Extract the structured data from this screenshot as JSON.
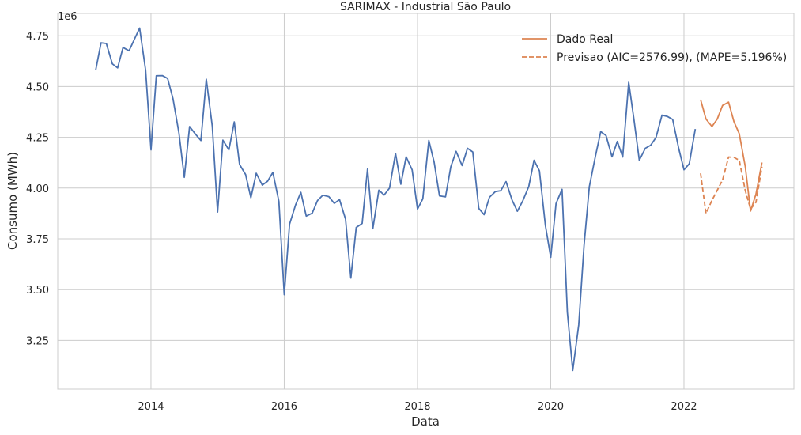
{
  "chart_data": {
    "type": "line",
    "title": "SARIMAX - Industrial São Paulo",
    "xlabel": "Data",
    "ylabel": "Consumo (MWh)",
    "y_offset_label": "1e6",
    "xlim": [
      2012.6,
      2023.65
    ],
    "ylim": [
      3010000,
      4860000
    ],
    "x_ticks": [
      2014,
      2016,
      2018,
      2020,
      2022
    ],
    "x_tick_labels": [
      "2014",
      "2016",
      "2018",
      "2020",
      "2022"
    ],
    "y_ticks": [
      3.25,
      3.5,
      3.75,
      4.0,
      4.25,
      4.5,
      4.75
    ],
    "y_tick_labels": [
      "3.25",
      "3.50",
      "3.75",
      "4.00",
      "4.25",
      "4.50",
      "4.75"
    ],
    "grid": true,
    "legend_position": "top-right",
    "colors": {
      "history": "#4c72b0",
      "real": "#dd8452",
      "forecast": "#dd8452"
    },
    "series": [
      {
        "key": "history",
        "color": "#4c72b0",
        "dash": "solid",
        "x": [
          2013.17,
          2013.25,
          2013.33,
          2013.42,
          2013.5,
          2013.58,
          2013.67,
          2013.75,
          2013.83,
          2013.92,
          2014.0,
          2014.08,
          2014.17,
          2014.25,
          2014.33,
          2014.42,
          2014.5,
          2014.58,
          2014.67,
          2014.75,
          2014.83,
          2014.92,
          2015.0,
          2015.08,
          2015.17,
          2015.25,
          2015.33,
          2015.42,
          2015.5,
          2015.58,
          2015.67,
          2015.75,
          2015.83,
          2015.92,
          2016.0,
          2016.08,
          2016.17,
          2016.25,
          2016.33,
          2016.42,
          2016.5,
          2016.58,
          2016.67,
          2016.75,
          2016.83,
          2016.92,
          2017.0,
          2017.08,
          2017.17,
          2017.25,
          2017.33,
          2017.42,
          2017.5,
          2017.58,
          2017.67,
          2017.75,
          2017.83,
          2017.92,
          2018.0,
          2018.08,
          2018.17,
          2018.25,
          2018.33,
          2018.42,
          2018.5,
          2018.58,
          2018.67,
          2018.75,
          2018.83,
          2018.92,
          2019.0,
          2019.08,
          2019.17,
          2019.25,
          2019.33,
          2019.42,
          2019.5,
          2019.58,
          2019.67,
          2019.75,
          2019.83,
          2019.92,
          2020.0,
          2020.08,
          2020.17,
          2020.25,
          2020.33,
          2020.42,
          2020.5,
          2020.58,
          2020.67,
          2020.75,
          2020.83,
          2020.92,
          2021.0,
          2021.08,
          2021.17,
          2021.25,
          2021.33,
          2021.42,
          2021.5,
          2021.58,
          2021.67,
          2021.75,
          2021.83,
          2021.92,
          2022.0,
          2022.08,
          2022.17
        ],
        "y": [
          4580000,
          4715000,
          4712000,
          4612000,
          4592000,
          4692000,
          4676000,
          4732000,
          4788000,
          4580000,
          4188000,
          4553000,
          4554000,
          4540000,
          4440000,
          4272000,
          4053000,
          4303000,
          4265000,
          4234000,
          4536000,
          4304000,
          3882000,
          4236000,
          4188000,
          4326000,
          4116000,
          4067000,
          3953000,
          4073000,
          4015000,
          4034000,
          4077000,
          3935000,
          3475000,
          3822000,
          3917000,
          3979000,
          3862000,
          3876000,
          3939000,
          3965000,
          3958000,
          3925000,
          3943000,
          3847000,
          3557000,
          3806000,
          3826000,
          4094000,
          3800000,
          3990000,
          3966000,
          4000000,
          4171000,
          4019000,
          4154000,
          4090000,
          3897000,
          3947000,
          4235000,
          4128000,
          3962000,
          3957000,
          4105000,
          4181000,
          4111000,
          4196000,
          4178000,
          3900000,
          3869000,
          3955000,
          3983000,
          3987000,
          4032000,
          3941000,
          3886000,
          3937000,
          4008000,
          4137000,
          4085000,
          3817000,
          3659000,
          3924000,
          3994000,
          3389000,
          3102000,
          3327000,
          3717000,
          4007000,
          4155000,
          4278000,
          4259000,
          4154000,
          4230000,
          4153000,
          4521000,
          4336000,
          4137000,
          4196000,
          4211000,
          4249000,
          4359000,
          4353000,
          4338000,
          4198000,
          4090000,
          4120000,
          4291000
        ]
      },
      {
        "key": "real",
        "name": "Dado Real",
        "color": "#dd8452",
        "dash": "solid",
        "x": [
          2022.25,
          2022.33,
          2022.42,
          2022.5,
          2022.58,
          2022.67,
          2022.75,
          2022.83,
          2022.92,
          2023.0,
          2023.08,
          2023.17
        ],
        "y": [
          4436000,
          4340000,
          4303000,
          4340000,
          4407000,
          4423000,
          4327000,
          4268000,
          4106000,
          3887000,
          3970000,
          4126000
        ]
      },
      {
        "key": "forecast",
        "name": "Previsao (AIC=2576.99), (MAPE=5.196%)",
        "color": "#dd8452",
        "dash": "dashed",
        "x": [
          2022.25,
          2022.33,
          2022.42,
          2022.5,
          2022.58,
          2022.67,
          2022.75,
          2022.83,
          2022.92,
          2023.0,
          2023.08,
          2023.17
        ],
        "y": [
          4073000,
          3875000,
          3940000,
          3989000,
          4040000,
          4153000,
          4151000,
          4137000,
          3988000,
          3897000,
          3930000,
          4105000
        ]
      }
    ]
  }
}
